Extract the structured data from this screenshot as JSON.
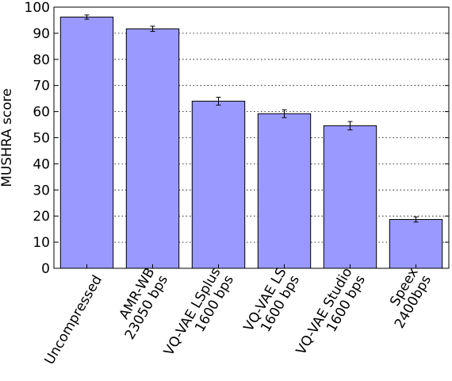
{
  "chart_data": {
    "type": "bar",
    "title": "",
    "xlabel": "",
    "ylabel": "MUSHRA score",
    "ylim": [
      0,
      100
    ],
    "yticks": [
      0,
      10,
      20,
      30,
      40,
      50,
      60,
      70,
      80,
      90,
      100
    ],
    "grid": "horizontal dotted",
    "bar_color": "#9999ff",
    "categories": [
      [
        "Uncompressed"
      ],
      [
        "AMR-WB",
        "23050 bps"
      ],
      [
        "VQ-VAE LSplus",
        "1600 bps"
      ],
      [
        "VQ-VAE LS",
        "1600 bps"
      ],
      [
        "VQ-VAE Studio",
        "1600 bps"
      ],
      [
        "Speex",
        "2400bps"
      ]
    ],
    "values": [
      96.2,
      91.7,
      64.0,
      59.2,
      54.6,
      18.7
    ],
    "errors": [
      0.8,
      1.0,
      1.5,
      1.5,
      1.6,
      1.0
    ]
  }
}
